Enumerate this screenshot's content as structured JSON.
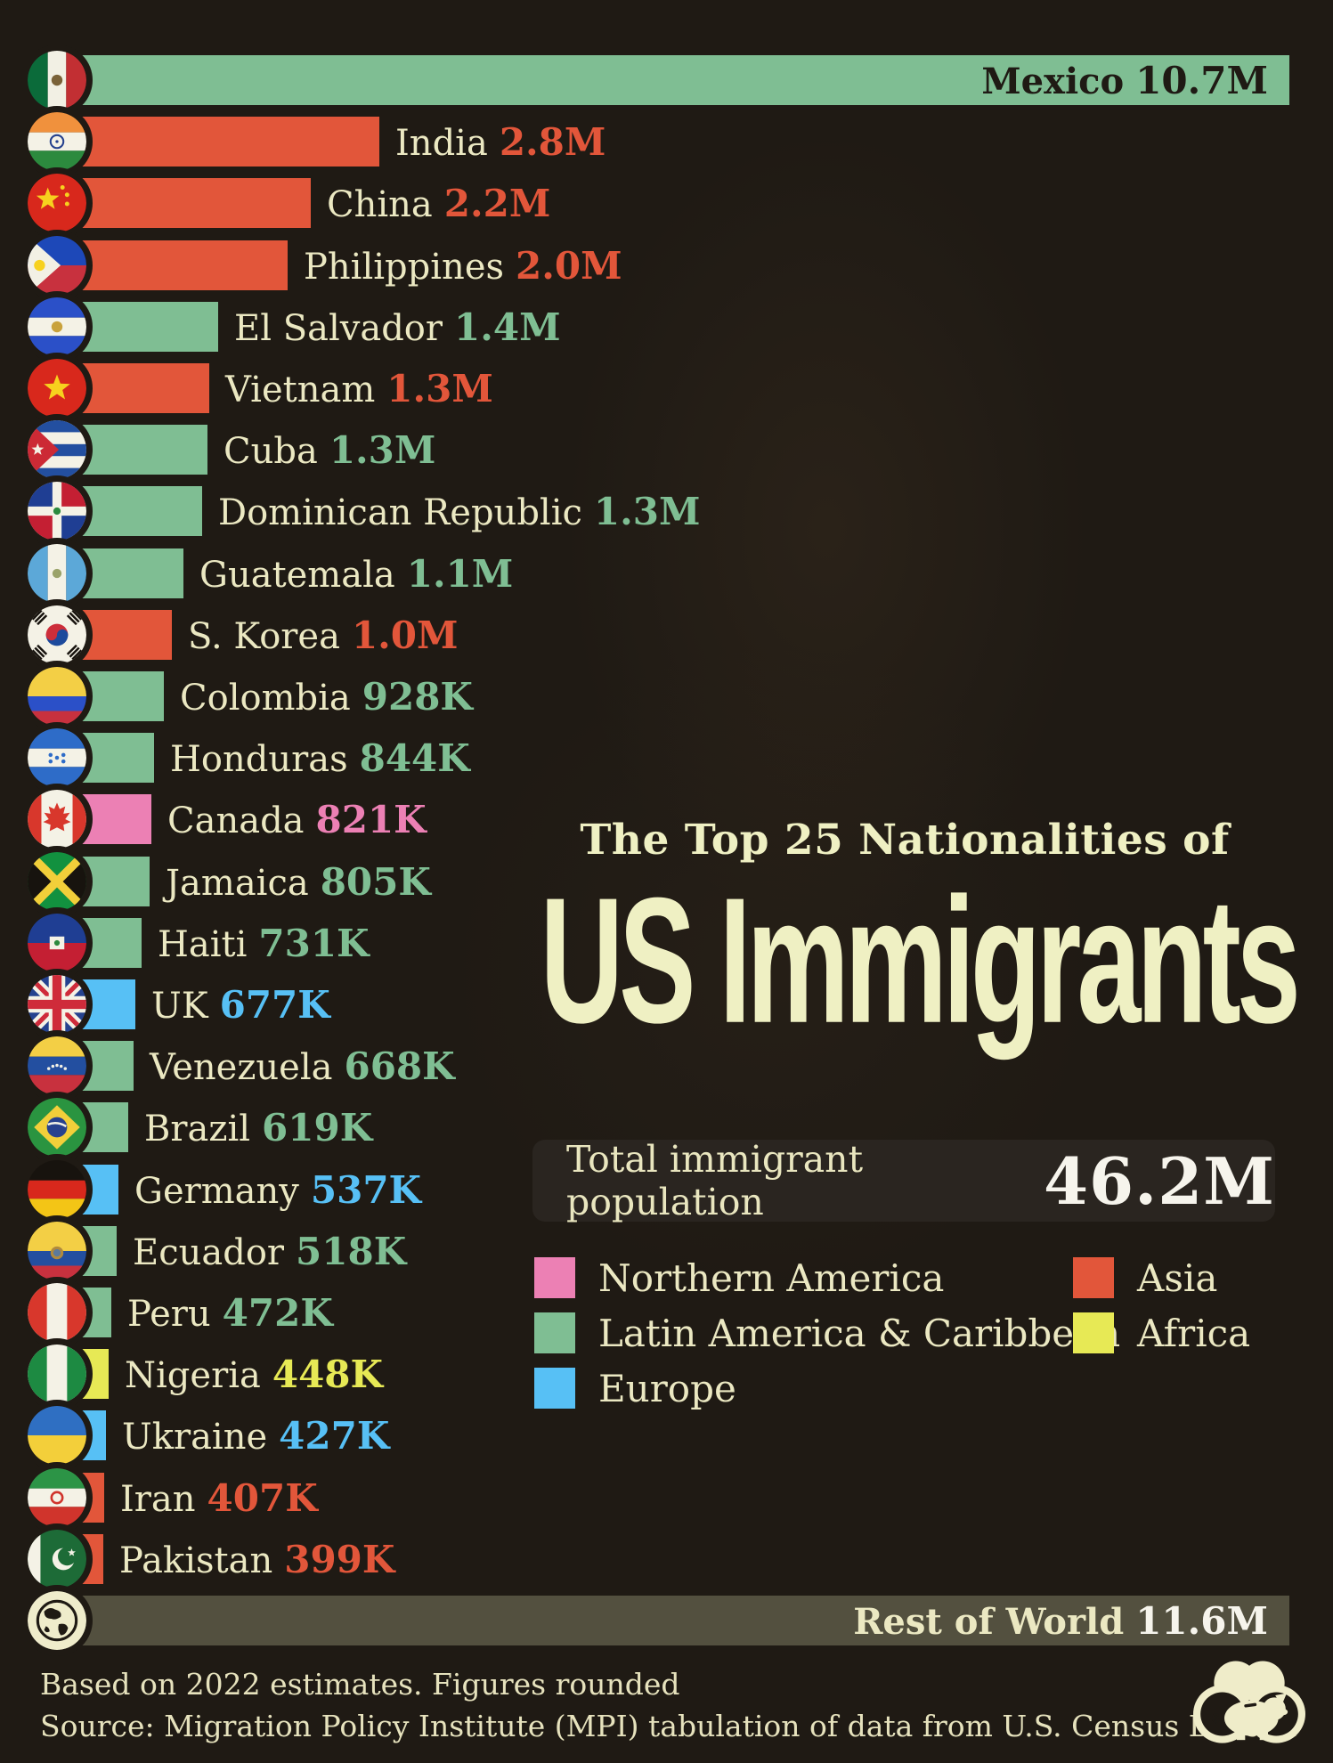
{
  "chart_data": {
    "type": "bar",
    "orientation": "horizontal",
    "title_kicker": "The Top 25 Nationalities of",
    "title_main": "US Immigrants",
    "total": {
      "label": "Total immigrant population",
      "value": "46.2M"
    },
    "xlim_millions": [
      0,
      10.7
    ],
    "grid": false,
    "legend_position": "center-right, two columns",
    "regions": [
      {
        "id": "northern_america",
        "label": "Northern America",
        "color": "#ec80b4"
      },
      {
        "id": "latin_america",
        "label": "Latin America & Caribbean",
        "color": "#7fbe93"
      },
      {
        "id": "europe",
        "label": "Europe",
        "color": "#57c0f5"
      },
      {
        "id": "asia",
        "label": "Asia",
        "color": "#e2563a"
      },
      {
        "id": "africa",
        "label": "Africa",
        "color": "#e7e955"
      },
      {
        "id": "rest",
        "label": "Rest of World",
        "color": "#53503f"
      }
    ],
    "legend_columns": [
      [
        "northern_america",
        "latin_america",
        "europe"
      ],
      [
        "asia",
        "africa"
      ]
    ],
    "rows": [
      {
        "country": "Mexico",
        "value": "10.7M",
        "value_m": 10.7,
        "region": "latin_america",
        "flag": "mexico",
        "label_inside": true,
        "country_color": "#1f1a14",
        "value_color": "#1f1a14"
      },
      {
        "country": "India",
        "value": "2.8M",
        "value_m": 2.8,
        "region": "asia",
        "flag": "india"
      },
      {
        "country": "China",
        "value": "2.2M",
        "value_m": 2.2,
        "region": "asia",
        "flag": "china"
      },
      {
        "country": "Philippines",
        "value": "2.0M",
        "value_m": 2.0,
        "region": "asia",
        "flag": "philippines"
      },
      {
        "country": "El Salvador",
        "value": "1.4M",
        "value_m": 1.4,
        "region": "latin_america",
        "flag": "el_salvador"
      },
      {
        "country": "Vietnam",
        "value": "1.3M",
        "value_m": 1.32,
        "region": "asia",
        "flag": "vietnam"
      },
      {
        "country": "Cuba",
        "value": "1.3M",
        "value_m": 1.31,
        "region": "latin_america",
        "flag": "cuba"
      },
      {
        "country": "Dominican Republic",
        "value": "1.3M",
        "value_m": 1.26,
        "region": "latin_america",
        "flag": "dominican_republic"
      },
      {
        "country": "Guatemala",
        "value": "1.1M",
        "value_m": 1.1,
        "region": "latin_america",
        "flag": "guatemala"
      },
      {
        "country": "S. Korea",
        "value": "1.0M",
        "value_m": 1.0,
        "region": "asia",
        "flag": "skorea"
      },
      {
        "country": "Colombia",
        "value": "928K",
        "value_m": 0.928,
        "region": "latin_america",
        "flag": "colombia"
      },
      {
        "country": "Honduras",
        "value": "844K",
        "value_m": 0.844,
        "region": "latin_america",
        "flag": "honduras"
      },
      {
        "country": "Canada",
        "value": "821K",
        "value_m": 0.821,
        "region": "northern_america",
        "flag": "canada"
      },
      {
        "country": "Jamaica",
        "value": "805K",
        "value_m": 0.805,
        "region": "latin_america",
        "flag": "jamaica"
      },
      {
        "country": "Haiti",
        "value": "731K",
        "value_m": 0.731,
        "region": "latin_america",
        "flag": "haiti"
      },
      {
        "country": "UK",
        "value": "677K",
        "value_m": 0.677,
        "region": "europe",
        "flag": "uk"
      },
      {
        "country": "Venezuela",
        "value": "668K",
        "value_m": 0.668,
        "region": "latin_america",
        "flag": "venezuela"
      },
      {
        "country": "Brazil",
        "value": "619K",
        "value_m": 0.619,
        "region": "latin_america",
        "flag": "brazil"
      },
      {
        "country": "Germany",
        "value": "537K",
        "value_m": 0.537,
        "region": "europe",
        "flag": "germany"
      },
      {
        "country": "Ecuador",
        "value": "518K",
        "value_m": 0.518,
        "region": "latin_america",
        "flag": "ecuador"
      },
      {
        "country": "Peru",
        "value": "472K",
        "value_m": 0.472,
        "region": "latin_america",
        "flag": "peru"
      },
      {
        "country": "Nigeria",
        "value": "448K",
        "value_m": 0.448,
        "region": "africa",
        "flag": "nigeria"
      },
      {
        "country": "Ukraine",
        "value": "427K",
        "value_m": 0.427,
        "region": "europe",
        "flag": "ukraine"
      },
      {
        "country": "Iran",
        "value": "407K",
        "value_m": 0.407,
        "region": "asia",
        "flag": "iran"
      },
      {
        "country": "Pakistan",
        "value": "399K",
        "value_m": 0.399,
        "region": "asia",
        "flag": "pakistan"
      },
      {
        "country": "Rest of World",
        "value": "11.6M",
        "value_m": 11.6,
        "region": "rest",
        "flag": "world",
        "label_inside": true,
        "country_color": "#ebe8c2",
        "value_color": "#f6f4ec"
      }
    ],
    "footnotes": [
      "Based on 2022 estimates. Figures rounded",
      "Source: Migration Policy Institute (MPI) tabulation of data from U.S. Census Bureau"
    ]
  },
  "colors": {
    "background": "#1f1a14",
    "label_cream": "#ebe8c2",
    "title_cream": "#eff0c3",
    "value_white": "#f6f4ec",
    "dark_text": "#1f1a14",
    "total_box_bg": "#2a2520"
  }
}
